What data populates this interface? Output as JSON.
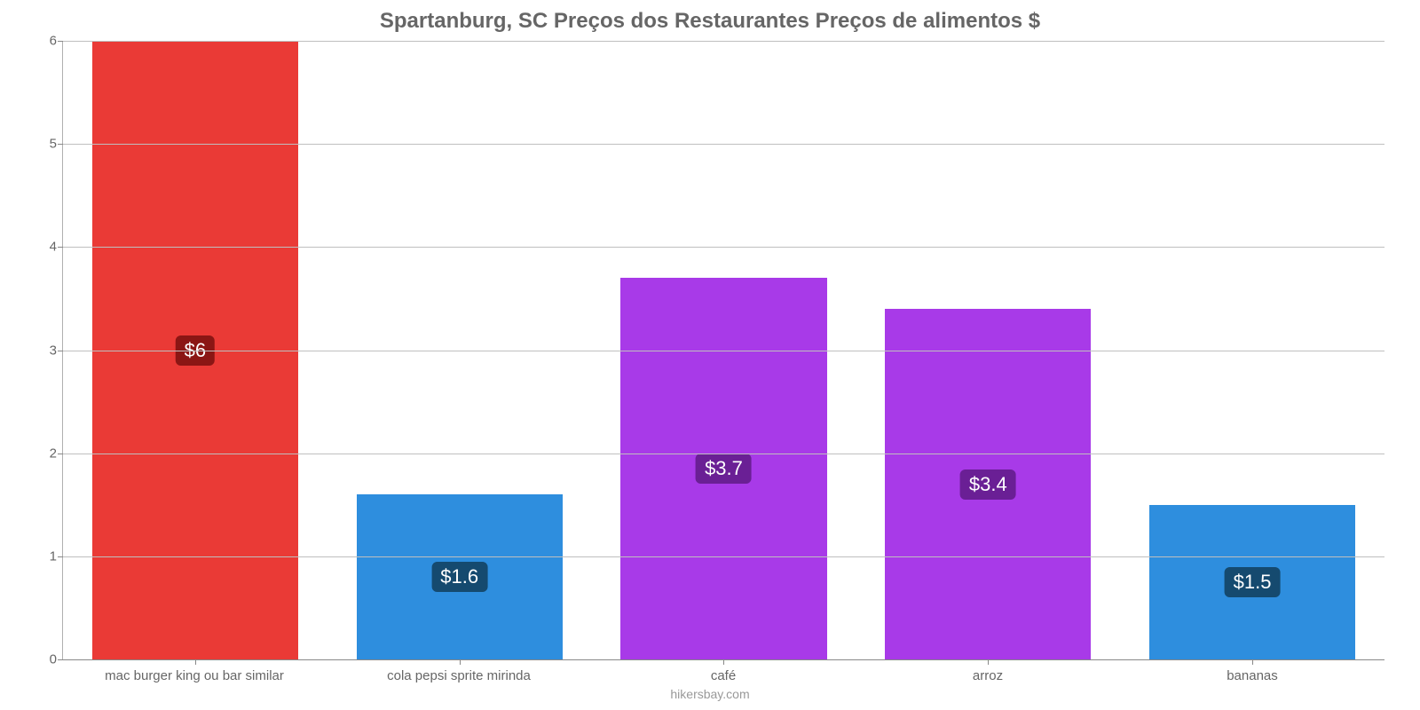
{
  "chart": {
    "type": "bar",
    "title": "Spartanburg, SC Preços dos Restaurantes Preços de alimentos $",
    "title_fontsize": 24,
    "title_color": "#666666",
    "source": "hikersbay.com",
    "source_color": "#999999",
    "background_color": "#ffffff",
    "grid_color": "#bfbfbf",
    "axis_color": "#888888",
    "tick_label_color": "#666666",
    "tick_label_fontsize": 15,
    "value_label_fontsize": 22,
    "value_label_text_color": "#ffffff",
    "ylim": [
      0,
      6
    ],
    "ytick_step": 1,
    "yticks": [
      0,
      1,
      2,
      3,
      4,
      5,
      6
    ],
    "bar_width": 0.78,
    "categories": [
      "mac burger king ou bar similar",
      "cola pepsi sprite mirinda",
      "café",
      "arroz",
      "bananas"
    ],
    "values": [
      6,
      1.6,
      3.7,
      3.4,
      1.5
    ],
    "value_labels": [
      "$6",
      "$1.6",
      "$3.7",
      "$3.4",
      "$1.5"
    ],
    "bar_colors": [
      "#ea3a36",
      "#2e8ede",
      "#a83ae8",
      "#a83ae8",
      "#2e8ede"
    ],
    "label_bg_colors": [
      "#8b1614",
      "#154a6f",
      "#6a1f95",
      "#6a1f95",
      "#154a6f"
    ]
  }
}
